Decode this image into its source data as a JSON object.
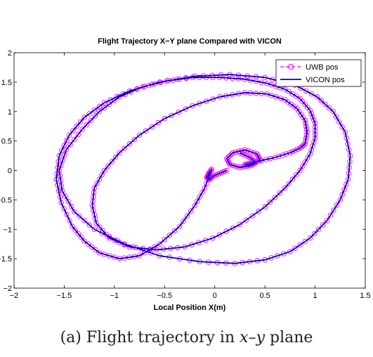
{
  "caption": {
    "prefix": "(a) Flight trajectory in ",
    "var1": "x",
    "dash": "–",
    "var2": "y",
    "suffix": " plane"
  },
  "chart_data": {
    "type": "line",
    "title": "Flight Trajectory X−Y plane Compared with VICON",
    "xlabel": "Local Position X(m)",
    "ylabel": "",
    "xlim": [
      -2,
      1.5
    ],
    "ylim": [
      -2,
      2
    ],
    "xticks": [
      -2,
      -1.5,
      -1,
      -0.5,
      0,
      0.5,
      1,
      1.5
    ],
    "xtick_labels": [
      "−2",
      "−1.5",
      "−1",
      "−0.5",
      "0",
      "0.5",
      "1",
      "1.5"
    ],
    "yticks": [
      -2,
      -1.5,
      -1,
      -0.5,
      0,
      0.5,
      1,
      1.5,
      2
    ],
    "ytick_labels": [
      "−2",
      "−1.5",
      "−1",
      "−0.5",
      "0",
      "0.5",
      "1",
      "1.5",
      "2"
    ],
    "grid": false,
    "legend_position": "top-right",
    "colors": {
      "uwb": "#ff00ff",
      "vicon": "#0000cc"
    },
    "series": [
      {
        "name": "UWB pos",
        "style": "dashed-circle-markers",
        "x": [
          0.12,
          0.05,
          -0.02,
          -0.05,
          -0.08,
          -0.06,
          -0.03,
          -0.1,
          -0.2,
          -0.35,
          -0.55,
          -0.75,
          -0.95,
          -1.15,
          -1.3,
          -1.42,
          -1.53,
          -1.58,
          -1.55,
          -1.45,
          -1.3,
          -1.1,
          -0.85,
          -0.55,
          -0.2,
          0.15,
          0.5,
          0.8,
          1.02,
          1.18,
          1.3,
          1.35,
          1.33,
          1.25,
          1.12,
          0.95,
          0.75,
          0.5,
          0.2,
          -0.15,
          -0.55,
          -0.9,
          -1.2,
          -1.4,
          -1.52,
          -1.55,
          -1.48,
          -1.32,
          -1.15,
          -0.95,
          -0.72,
          -0.48,
          -0.22,
          0.05,
          0.3,
          0.52,
          0.7,
          0.85,
          0.95,
          1.0,
          1.0,
          0.95,
          0.85,
          0.7,
          0.5,
          0.25,
          -0.02,
          -0.3,
          -0.58,
          -0.85,
          -1.05,
          -1.18,
          -1.22,
          -1.2,
          -1.1,
          -0.95,
          -0.75,
          -0.5,
          -0.22,
          0.05,
          0.3,
          0.52,
          0.7,
          0.82,
          0.9,
          0.92,
          0.9,
          0.85,
          0.75,
          0.6,
          0.42,
          0.35,
          0.3,
          0.38,
          0.45,
          0.42,
          0.3,
          0.18,
          0.12,
          0.15,
          0.25,
          0.35,
          0.4,
          0.35,
          0.25
        ],
        "y": [
          0.0,
          -0.05,
          -0.1,
          -0.15,
          -0.12,
          -0.05,
          0.02,
          -0.3,
          -0.6,
          -0.95,
          -1.25,
          -1.45,
          -1.5,
          -1.4,
          -1.2,
          -0.95,
          -0.55,
          -0.15,
          0.25,
          0.6,
          0.9,
          1.15,
          1.35,
          1.5,
          1.6,
          1.63,
          1.58,
          1.45,
          1.25,
          1.0,
          0.65,
          0.25,
          -0.15,
          -0.5,
          -0.85,
          -1.15,
          -1.38,
          -1.52,
          -1.58,
          -1.55,
          -1.45,
          -1.25,
          -1.0,
          -0.7,
          -0.35,
          0.0,
          0.35,
          0.7,
          1.0,
          1.25,
          1.42,
          1.52,
          1.58,
          1.58,
          1.55,
          1.48,
          1.38,
          1.22,
          1.02,
          0.8,
          0.55,
          0.28,
          0.0,
          -0.3,
          -0.62,
          -0.92,
          -1.15,
          -1.3,
          -1.35,
          -1.3,
          -1.15,
          -0.9,
          -0.6,
          -0.3,
          0.0,
          0.3,
          0.6,
          0.88,
          1.1,
          1.25,
          1.32,
          1.3,
          1.2,
          1.05,
          0.85,
          0.65,
          0.45,
          0.38,
          0.3,
          0.22,
          0.15,
          0.12,
          0.1,
          0.1,
          0.18,
          0.28,
          0.35,
          0.3,
          0.2,
          0.1,
          0.05,
          0.08,
          0.15,
          0.22,
          0.3
        ]
      },
      {
        "name": "VICON pos",
        "style": "solid",
        "x": [
          0.12,
          0.05,
          -0.02,
          -0.05,
          -0.08,
          -0.06,
          -0.03,
          -0.1,
          -0.2,
          -0.35,
          -0.55,
          -0.75,
          -0.95,
          -1.15,
          -1.3,
          -1.42,
          -1.53,
          -1.58,
          -1.55,
          -1.45,
          -1.3,
          -1.1,
          -0.85,
          -0.55,
          -0.2,
          0.15,
          0.5,
          0.8,
          1.02,
          1.18,
          1.3,
          1.35,
          1.33,
          1.25,
          1.12,
          0.95,
          0.75,
          0.5,
          0.2,
          -0.15,
          -0.55,
          -0.9,
          -1.2,
          -1.4,
          -1.52,
          -1.55,
          -1.48,
          -1.32,
          -1.15,
          -0.95,
          -0.72,
          -0.48,
          -0.22,
          0.05,
          0.3,
          0.52,
          0.7,
          0.85,
          0.95,
          1.0,
          1.0,
          0.95,
          0.85,
          0.7,
          0.5,
          0.25,
          -0.02,
          -0.3,
          -0.58,
          -0.85,
          -1.05,
          -1.18,
          -1.22,
          -1.2,
          -1.1,
          -0.95,
          -0.75,
          -0.5,
          -0.22,
          0.05,
          0.3,
          0.52,
          0.7,
          0.82,
          0.9,
          0.92,
          0.9,
          0.85,
          0.75,
          0.6,
          0.42,
          0.35,
          0.3,
          0.38,
          0.45,
          0.42,
          0.3,
          0.18,
          0.12,
          0.15,
          0.25,
          0.35,
          0.4,
          0.35,
          0.25
        ],
        "y": [
          0.0,
          -0.05,
          -0.1,
          -0.15,
          -0.12,
          -0.05,
          0.02,
          -0.3,
          -0.6,
          -0.95,
          -1.25,
          -1.45,
          -1.5,
          -1.4,
          -1.2,
          -0.95,
          -0.55,
          -0.15,
          0.25,
          0.6,
          0.9,
          1.15,
          1.35,
          1.5,
          1.6,
          1.63,
          1.58,
          1.45,
          1.25,
          1.0,
          0.65,
          0.25,
          -0.15,
          -0.5,
          -0.85,
          -1.15,
          -1.38,
          -1.52,
          -1.58,
          -1.55,
          -1.45,
          -1.25,
          -1.0,
          -0.7,
          -0.35,
          0.0,
          0.35,
          0.7,
          1.0,
          1.25,
          1.42,
          1.52,
          1.58,
          1.58,
          1.55,
          1.48,
          1.38,
          1.22,
          1.02,
          0.8,
          0.55,
          0.28,
          0.0,
          -0.3,
          -0.62,
          -0.92,
          -1.15,
          -1.3,
          -1.35,
          -1.3,
          -1.15,
          -0.9,
          -0.6,
          -0.3,
          0.0,
          0.3,
          0.6,
          0.88,
          1.1,
          1.25,
          1.32,
          1.3,
          1.2,
          1.05,
          0.85,
          0.65,
          0.45,
          0.38,
          0.3,
          0.22,
          0.15,
          0.12,
          0.1,
          0.1,
          0.18,
          0.28,
          0.35,
          0.3,
          0.2,
          0.1,
          0.05,
          0.08,
          0.15,
          0.22,
          0.3
        ]
      }
    ]
  }
}
